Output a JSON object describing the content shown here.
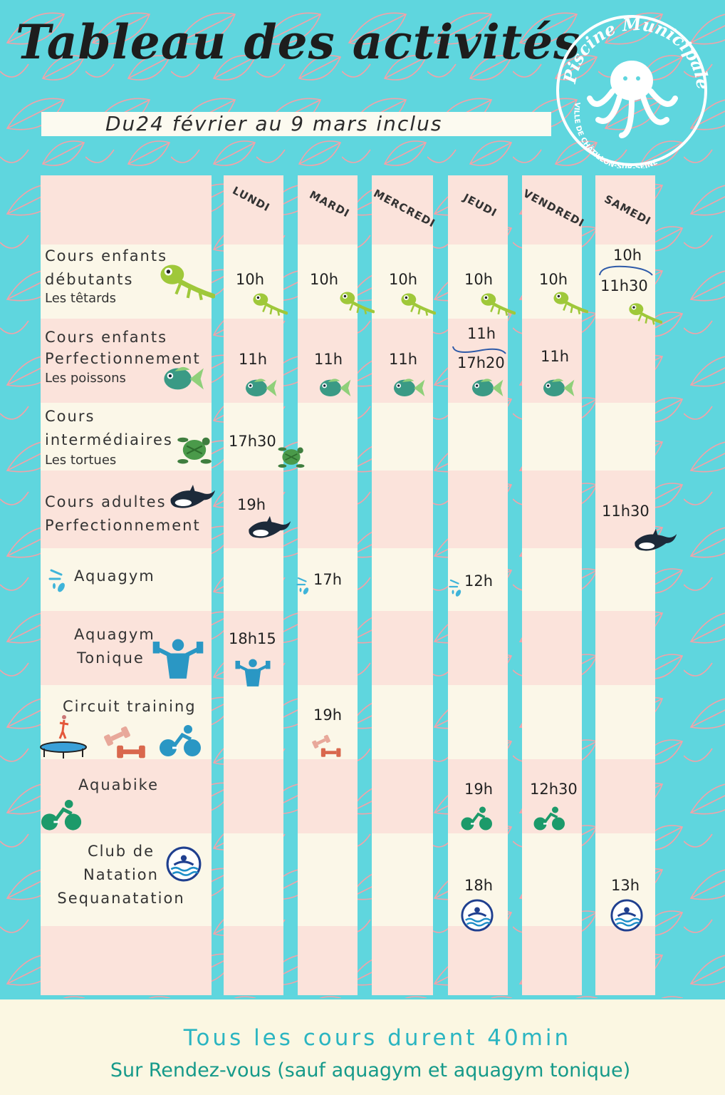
{
  "title": "Tableau des activités",
  "subtitle": "Du24 février au 9 mars inclus",
  "logo": {
    "line1": "Piscine Municipale",
    "line2": "VILLE DE CHÂTILLON-SUR-SEINE",
    "icon": "octopus-icon"
  },
  "days": [
    "LUNDI",
    "MARDI",
    "MERCREDI",
    "JEUDI",
    "VENDREDI",
    "SAMEDI"
  ],
  "activities": [
    {
      "l1": "Cours enfants",
      "l2": "débutants",
      "l3": "Les têtards",
      "icon": "lizard-icon"
    },
    {
      "l1": "Cours enfants",
      "l2": "Perfectionnement",
      "l3": "Les poissons",
      "icon": "fish-icon"
    },
    {
      "l1": "Cours",
      "l2": "intermédiaires",
      "l3": "Les tortues",
      "icon": "turtle-icon"
    },
    {
      "l1": "Cours adultes",
      "l2": "Perfectionnement",
      "icon": "orca-icon"
    },
    {
      "l1": "Aquagym",
      "icon": "splash-icon"
    },
    {
      "l1": "Aquagym",
      "l2": "Tonique",
      "icon": "weightlifter-icon"
    },
    {
      "l1": "Circuit training",
      "icon": "trampoline-dumbbell-bike-icon"
    },
    {
      "l1": "Aquabike",
      "icon": "bike-icon"
    },
    {
      "l1": "Club de",
      "l2": "Natation",
      "l3": "Sequanatation",
      "icon": "swimmer-icon"
    }
  ],
  "schedule": {
    "r0": {
      "lundi": "10h",
      "mardi": "10h",
      "mercredi": "10h",
      "jeudi": "10h",
      "vendredi": "10h",
      "samedi_a": "10h",
      "samedi_b": "11h30"
    },
    "r1": {
      "lundi": "11h",
      "mardi": "11h",
      "mercredi": "11h",
      "jeudi_a": "11h",
      "jeudi_b": "17h20",
      "vendredi": "11h"
    },
    "r2": {
      "lundi": "17h30"
    },
    "r3": {
      "lundi": "19h",
      "samedi": "11h30"
    },
    "r4": {
      "mardi": "17h",
      "jeudi": "12h"
    },
    "r5": {
      "lundi": "18h15"
    },
    "r6": {
      "mardi": "19h"
    },
    "r7": {
      "jeudi": "19h",
      "vendredi": "12h30"
    },
    "r8": {
      "jeudi": "18h",
      "samedi": "13h"
    }
  },
  "footer": {
    "line1": "Tous les cours durent 40min",
    "line2": "Sur Rendez-vous (sauf aquagym et aquagym tonique)"
  },
  "colors": {
    "background": "#5fd6de",
    "pattern": "#f3a2a8",
    "row_cream": "#fbf7e8",
    "row_pink": "#fbe3db",
    "footer": "#fbf7e2"
  }
}
